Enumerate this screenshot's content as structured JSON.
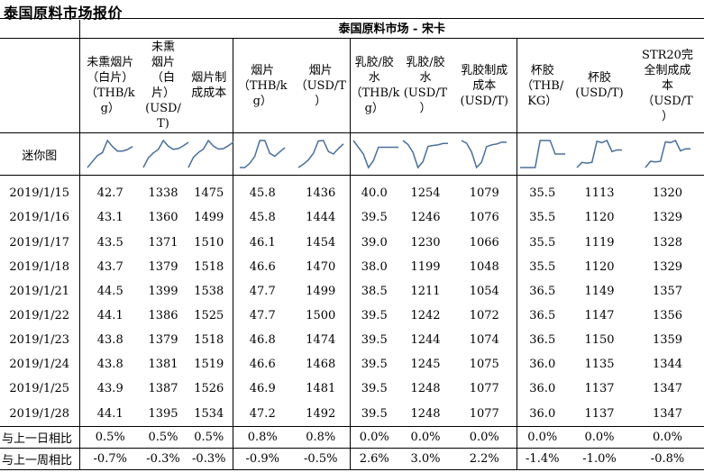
{
  "title": "泰国原料市场报价",
  "market_header": "泰国原料市场 - 宋卡",
  "columns": [
    {
      "lines": [
        "未熏烟片",
        "（白片）",
        "（THB/k",
        "g）"
      ],
      "group": 1
    },
    {
      "lines": [
        "未熏",
        "烟片",
        "（白",
        "片）",
        "(USD/",
        "T)"
      ],
      "group": 1
    },
    {
      "lines": [
        "烟片制",
        "成成本"
      ],
      "group": 1
    },
    {
      "lines": [
        "烟片",
        "（THB/k",
        "g）"
      ],
      "group": 2
    },
    {
      "lines": [
        "烟片",
        "（USD/T",
        "）"
      ],
      "group": 2
    },
    {
      "lines": [
        "乳胶/胶",
        "水",
        "（THB/k",
        "g）"
      ],
      "group": 3
    },
    {
      "lines": [
        "乳胶/胶",
        "水",
        "(USD/T",
        "）"
      ],
      "group": 3
    },
    {
      "lines": [
        "乳胶制成",
        "成本",
        "(USD/T)"
      ],
      "group": 3
    },
    {
      "lines": [
        "杯胶",
        "（THB/",
        "KG）"
      ],
      "group": 4
    },
    {
      "lines": [
        "杯胶",
        "(USD/T)"
      ],
      "group": 4
    },
    {
      "lines": [
        "STR20完",
        "全制成成",
        "本",
        "（USD/T",
        "）"
      ],
      "group": 4
    }
  ],
  "sparkline_label": "迷你图",
  "rows": [
    {
      "date": "2019/1/15",
      "values": [
        "42.7",
        "1338",
        "1475",
        "45.8",
        "1436",
        "40.0",
        "1254",
        "1079",
        "35.5",
        "1113",
        "1320"
      ]
    },
    {
      "date": "2019/1/16",
      "values": [
        "43.1",
        "1360",
        "1499",
        "45.8",
        "1444",
        "39.5",
        "1246",
        "1076",
        "35.5",
        "1120",
        "1329"
      ]
    },
    {
      "date": "2019/1/17",
      "values": [
        "43.5",
        "1371",
        "1510",
        "46.1",
        "1454",
        "39.0",
        "1230",
        "1066",
        "35.5",
        "1119",
        "1328"
      ]
    },
    {
      "date": "2019/1/18",
      "values": [
        "43.7",
        "1379",
        "1518",
        "46.6",
        "1470",
        "38.0",
        "1199",
        "1048",
        "35.5",
        "1120",
        "1329"
      ]
    },
    {
      "date": "2019/1/21",
      "values": [
        "44.5",
        "1399",
        "1538",
        "47.7",
        "1499",
        "38.5",
        "1211",
        "1054",
        "36.5",
        "1149",
        "1357"
      ]
    },
    {
      "date": "2019/1/22",
      "values": [
        "44.1",
        "1386",
        "1525",
        "47.7",
        "1500",
        "39.5",
        "1242",
        "1072",
        "36.5",
        "1147",
        "1356"
      ]
    },
    {
      "date": "2019/1/23",
      "values": [
        "43.8",
        "1379",
        "1518",
        "46.8",
        "1474",
        "39.5",
        "1244",
        "1074",
        "36.5",
        "1150",
        "1359"
      ]
    },
    {
      "date": "2019/1/24",
      "values": [
        "43.8",
        "1381",
        "1519",
        "46.6",
        "1468",
        "39.5",
        "1245",
        "1075",
        "36.0",
        "1135",
        "1344"
      ]
    },
    {
      "date": "2019/1/25",
      "values": [
        "43.9",
        "1387",
        "1526",
        "46.9",
        "1481",
        "39.5",
        "1248",
        "1077",
        "36.0",
        "1137",
        "1347"
      ]
    },
    {
      "date": "2019/1/28",
      "values": [
        "44.1",
        "1395",
        "1534",
        "47.2",
        "1492",
        "39.5",
        "1248",
        "1077",
        "36.0",
        "1137",
        "1347"
      ]
    }
  ],
  "comparisons": [
    {
      "label": "与上一日相比",
      "values": [
        "0.5%",
        "0.5%",
        "0.5%",
        "0.8%",
        "0.8%",
        "0.0%",
        "0.0%",
        "0.0%",
        "0.0%",
        "0.0%",
        "0.0%"
      ]
    },
    {
      "label": "与上一周相比",
      "values": [
        "-0.7%",
        "-0.3%",
        "-0.3%",
        "-0.9%",
        "-0.5%",
        "2.6%",
        "3.0%",
        "2.2%",
        "-1.4%",
        "-1.0%",
        "-0.8%"
      ]
    }
  ],
  "colors": {
    "sparkline": "#4a6f9c",
    "rule": "#000000"
  }
}
